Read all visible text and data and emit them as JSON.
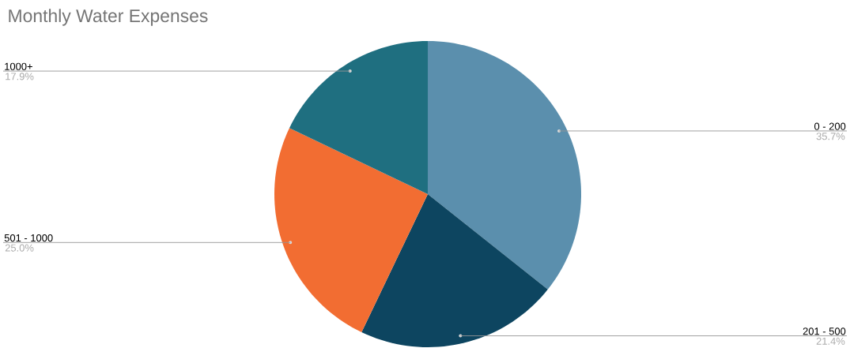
{
  "chart_data": {
    "type": "pie",
    "title": "Monthly Water Expenses",
    "categories": [
      "0 - 200",
      "201 - 500",
      "501 - 1000",
      "1000+"
    ],
    "values": [
      35.7,
      21.4,
      25.0,
      17.9
    ],
    "value_labels": [
      "35.7%",
      "21.4%",
      "25.0%",
      "17.9%"
    ],
    "colors": [
      "#5b8fad",
      "#0d4560",
      "#f26d32",
      "#1f6f80"
    ]
  }
}
